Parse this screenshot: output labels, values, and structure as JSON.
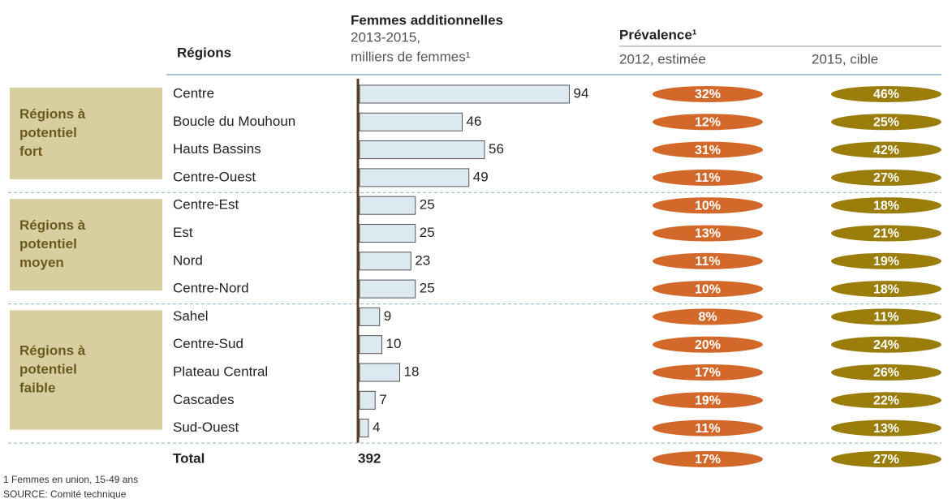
{
  "chart_data": {
    "type": "bar",
    "headers": {
      "regions": "Régions",
      "women_title": "Femmes additionnelles",
      "women_sub1": "2013-2015,",
      "women_sub2": "milliers de femmes¹",
      "prevalence": "Prévalence¹",
      "col_2012": "2012, estimée",
      "col_2015": "2015, cible"
    },
    "xlim": [
      0,
      100
    ],
    "bar_color": "#dde9f0",
    "color_2012": "#d2692a",
    "color_2015": "#9a7d0a",
    "groups": [
      {
        "label": [
          "Régions à",
          "potentiel",
          "fort"
        ],
        "categories": [
          "Centre",
          "Boucle du Mouhoun",
          "Hauts Bassins",
          "Centre-Ouest"
        ],
        "values": [
          94,
          46,
          56,
          49
        ],
        "prevalence_2012": {
          "values": [
            32,
            12,
            31,
            11
          ],
          "value_labels": [
            "32%",
            "12%",
            "31%",
            "11%"
          ]
        },
        "prevalence_2015": {
          "values": [
            46,
            25,
            42,
            27
          ],
          "value_labels": [
            "46%",
            "25%",
            "42%",
            "27%"
          ]
        }
      },
      {
        "label": [
          "Régions à",
          "potentiel",
          "moyen"
        ],
        "categories": [
          "Centre-Est",
          "Est",
          "Nord",
          "Centre-Nord"
        ],
        "values": [
          25,
          25,
          23,
          25
        ],
        "prevalence_2012": {
          "values": [
            10,
            13,
            11,
            10
          ],
          "value_labels": [
            "10%",
            "13%",
            "11%",
            "10%"
          ]
        },
        "prevalence_2015": {
          "values": [
            18,
            21,
            19,
            18
          ],
          "value_labels": [
            "18%",
            "21%",
            "19%",
            "18%"
          ]
        }
      },
      {
        "label": [
          "Régions à",
          "potentiel",
          "faible"
        ],
        "categories": [
          "Sahel",
          "Centre-Sud",
          "Plateau Central",
          "Cascades",
          "Sud-Ouest"
        ],
        "values": [
          9,
          10,
          18,
          7,
          4
        ],
        "prevalence_2012": {
          "values": [
            8,
            20,
            17,
            19,
            11
          ],
          "value_labels": [
            "8%",
            "20%",
            "17%",
            "19%",
            "11%"
          ]
        },
        "prevalence_2015": {
          "values": [
            11,
            24,
            26,
            22,
            13
          ],
          "value_labels": [
            "11%",
            "24%",
            "26%",
            "22%",
            "13%"
          ]
        }
      }
    ],
    "total": {
      "label": "Total",
      "value": 392,
      "prevalence_2012": {
        "value": 17,
        "value_label": "17%"
      },
      "prevalence_2015": {
        "value": 27,
        "value_label": "27%"
      }
    },
    "footnote": "1 Femmes en union, 15-49 ans",
    "source": "SOURCE: Comité technique"
  }
}
